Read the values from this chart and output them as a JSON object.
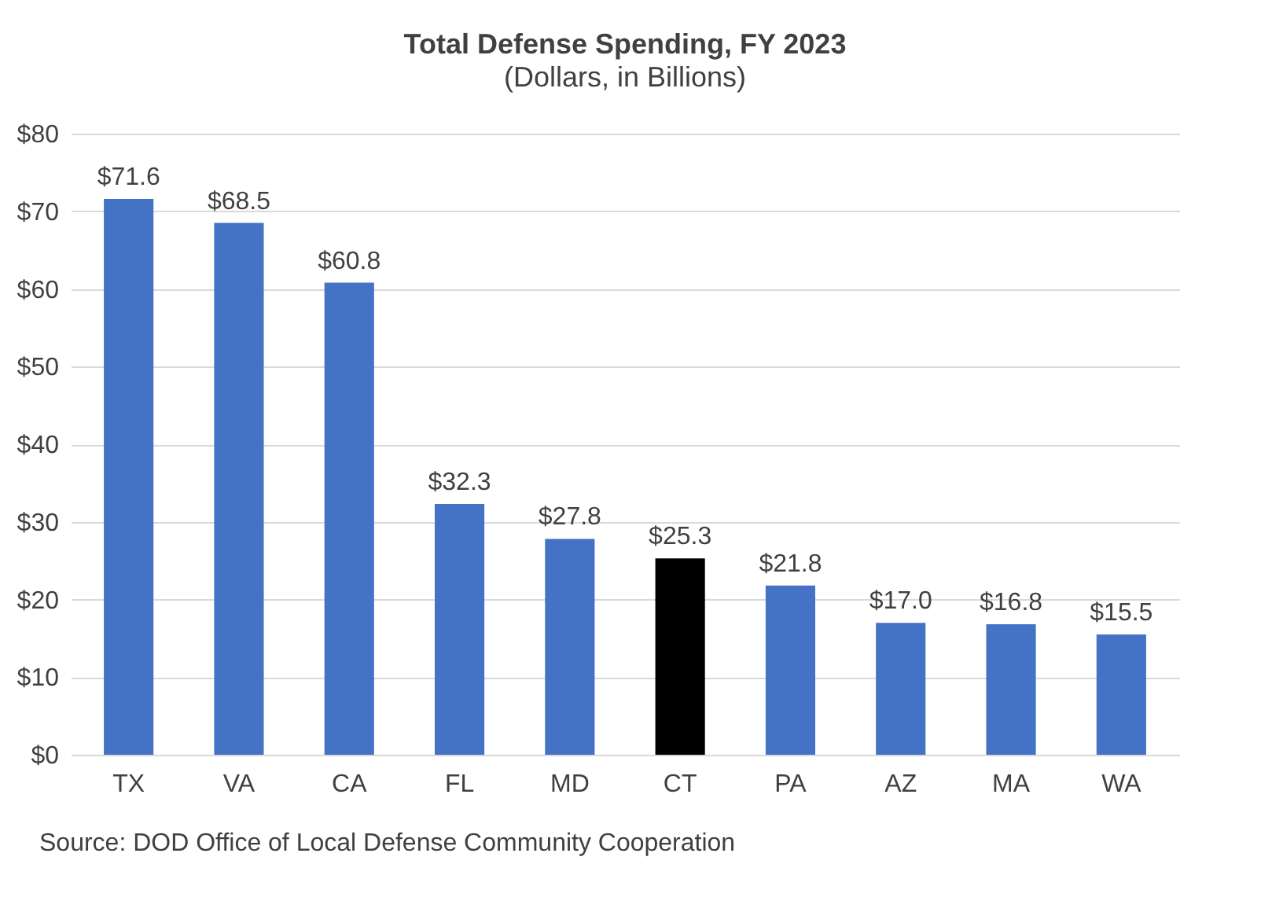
{
  "chart_data": {
    "type": "bar",
    "title": "Total Defense Spending, FY 2023",
    "subtitle": "(Dollars, in Billions)",
    "categories": [
      "TX",
      "VA",
      "CA",
      "FL",
      "MD",
      "CT",
      "PA",
      "AZ",
      "MA",
      "WA"
    ],
    "values": [
      71.6,
      68.5,
      60.8,
      32.3,
      27.8,
      25.3,
      21.8,
      17.0,
      16.8,
      15.5
    ],
    "value_labels": [
      "$71.6",
      "$68.5",
      "$60.8",
      "$32.3",
      "$27.8",
      "$25.3",
      "$21.8",
      "$17.0",
      "$16.8",
      "$15.5"
    ],
    "colors": [
      "#4472c4",
      "#4472c4",
      "#4472c4",
      "#4472c4",
      "#4472c4",
      "#000000",
      "#4472c4",
      "#4472c4",
      "#4472c4",
      "#4472c4"
    ],
    "ylim": [
      0,
      80
    ],
    "yticks": [
      {
        "value": 0,
        "label": "$0"
      },
      {
        "value": 10,
        "label": "$10"
      },
      {
        "value": 20,
        "label": "$20"
      },
      {
        "value": 30,
        "label": "$30"
      },
      {
        "value": 40,
        "label": "$40"
      },
      {
        "value": 50,
        "label": "$50"
      },
      {
        "value": 60,
        "label": "$60"
      },
      {
        "value": 70,
        "label": "$70"
      },
      {
        "value": 80,
        "label": "$80"
      }
    ],
    "grid": "y",
    "annotations": [
      "Source: DOD Office of Local Defense Community Cooperation"
    ]
  }
}
